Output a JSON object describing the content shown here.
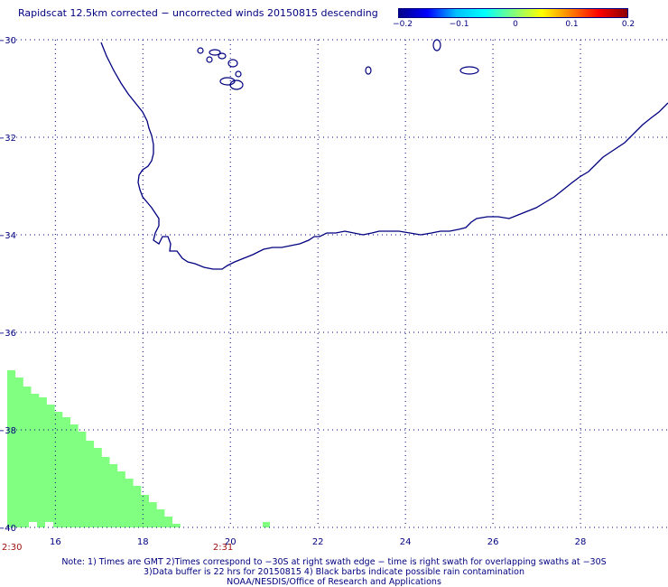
{
  "title": "Rapidscat 12.5km corrected − uncorrected winds 20150815 descending",
  "colorbar": {
    "labels": [
      "−0.2",
      "−0.1",
      "0",
      "0.1",
      "0.2"
    ],
    "colors": [
      "#00008b",
      "#0000ff",
      "#00bfff",
      "#00ffff",
      "#7fff7f",
      "#ffff00",
      "#ff8000",
      "#ff0000",
      "#8b0000"
    ]
  },
  "axes": {
    "x_ticks": [
      "16",
      "18",
      "20",
      "22",
      "24",
      "26",
      "28"
    ],
    "y_ticks": [
      "−30",
      "−32",
      "−34",
      "−36",
      "−38",
      "−40"
    ],
    "lon_range": [
      14.9,
      30.0
    ],
    "lat_range": [
      -40.0,
      -30.0
    ],
    "grid": true
  },
  "swath": {
    "color": "#80ff80",
    "time_labels": [
      {
        "text": "2:30",
        "lon": 14.9
      },
      {
        "text": "2:31",
        "lon": 19.6
      }
    ]
  },
  "notes": [
    "Note: 1) Times are GMT 2)Times correspond to −30S at right swath edge − time is right swath for overlapping swaths at −30S",
    "3)Data buffer is 22 hrs for 20150815 4) Black barbs indicate possible rain contamination",
    "NOAA/NESDIS/Office of Research and Applications"
  ]
}
